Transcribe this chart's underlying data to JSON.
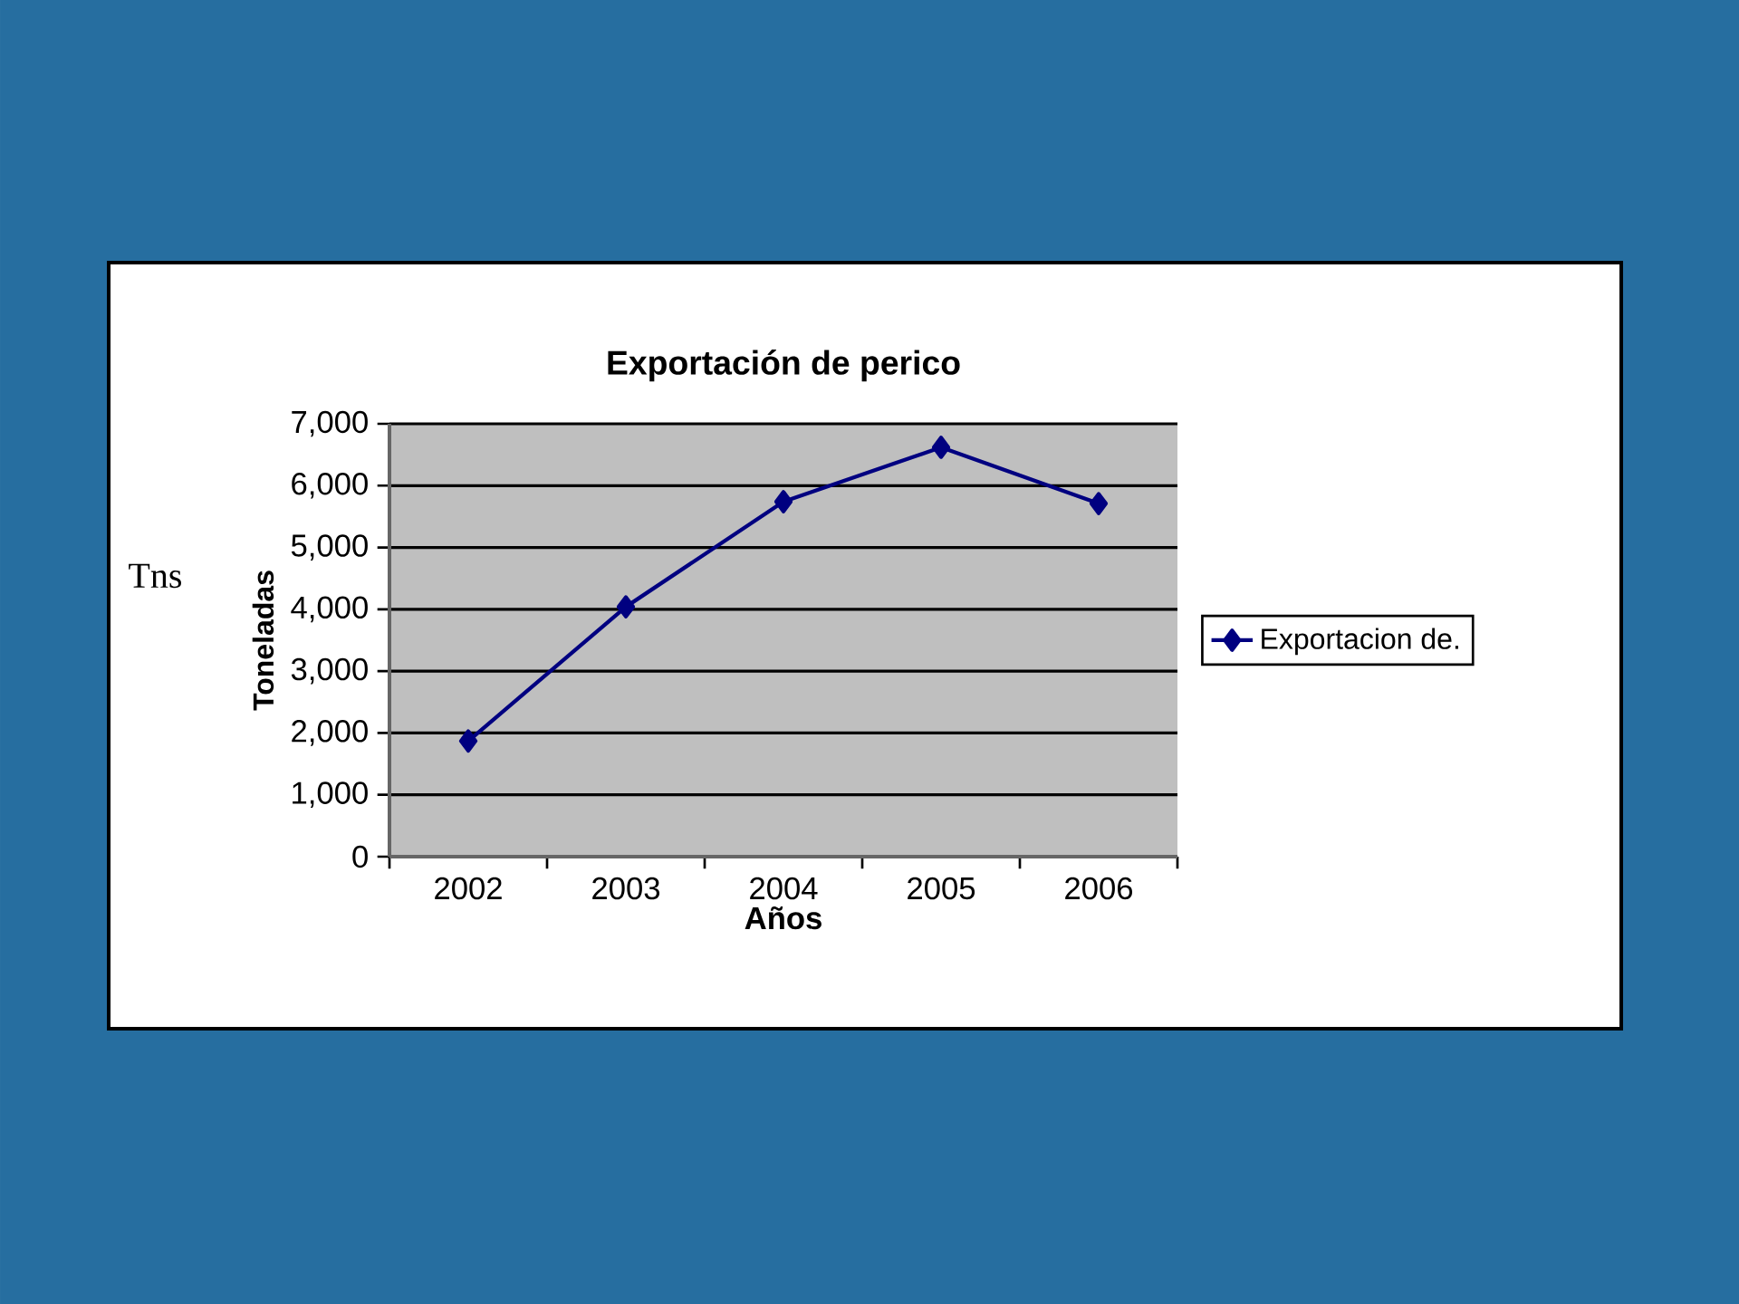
{
  "chart_data": {
    "type": "line",
    "title": "Exportación de perico",
    "xlabel": "Años",
    "ylabel": "Toneladas",
    "annotations": [
      "Tns"
    ],
    "categories": [
      "2002",
      "2003",
      "2004",
      "2005",
      "2006"
    ],
    "series": [
      {
        "name": "Exportacion de.",
        "color": "#000080",
        "values": [
          1870,
          4040,
          5740,
          6620,
          5710
        ]
      }
    ],
    "ylim": [
      0,
      7000
    ],
    "yticks": [
      {
        "value": 0,
        "label": "0"
      },
      {
        "value": 1000,
        "label": "1,000"
      },
      {
        "value": 2000,
        "label": "2,000"
      },
      {
        "value": 3000,
        "label": "3,000"
      },
      {
        "value": 4000,
        "label": "4,000"
      },
      {
        "value": 5000,
        "label": "5,000"
      },
      {
        "value": 6000,
        "label": "6,000"
      },
      {
        "value": 7000,
        "label": "7,000"
      }
    ],
    "grid": "y",
    "legend": "right",
    "marker": "diamond",
    "line_style": "solid"
  }
}
